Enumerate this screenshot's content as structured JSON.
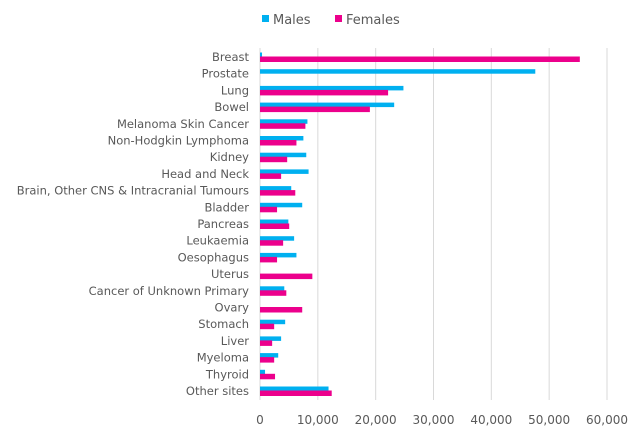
{
  "chart_data": {
    "type": "bar",
    "orientation": "horizontal",
    "categories": [
      "Breast",
      "Prostate",
      "Lung",
      "Bowel",
      "Melanoma Skin Cancer",
      "Non-Hodgkin Lymphoma",
      "Kidney",
      "Head and Neck",
      "Brain, Other CNS & Intracranial Tumours",
      "Bladder",
      "Pancreas",
      "Leukaemia",
      "Oesophagus",
      "Uterus",
      "Cancer of Unknown Primary",
      "Ovary",
      "Stomach",
      "Liver",
      "Myeloma",
      "Thyroid",
      "Other sites"
    ],
    "series": [
      {
        "name": "Males",
        "color": "#00B0F0",
        "values": [
          350,
          47600,
          24800,
          23200,
          8200,
          7500,
          8000,
          8400,
          5400,
          7300,
          4900,
          5900,
          6300,
          0,
          4200,
          0,
          4350,
          3650,
          3150,
          870,
          11850
        ]
      },
      {
        "name": "Females",
        "color": "#EC008C",
        "values": [
          55300,
          0,
          22150,
          19000,
          7850,
          6300,
          4700,
          3650,
          6100,
          2950,
          5050,
          4000,
          2950,
          9050,
          4550,
          7300,
          2450,
          2100,
          2450,
          2600,
          12400
        ]
      }
    ],
    "xlim": [
      0,
      60000
    ],
    "xticks": [
      0,
      10000,
      20000,
      30000,
      40000,
      50000,
      60000
    ],
    "xtick_labels": [
      "0",
      "10,000",
      "20,000",
      "30,000",
      "40,000",
      "50,000",
      "60,000"
    ],
    "grid": "vertical",
    "legend_position": "top"
  }
}
